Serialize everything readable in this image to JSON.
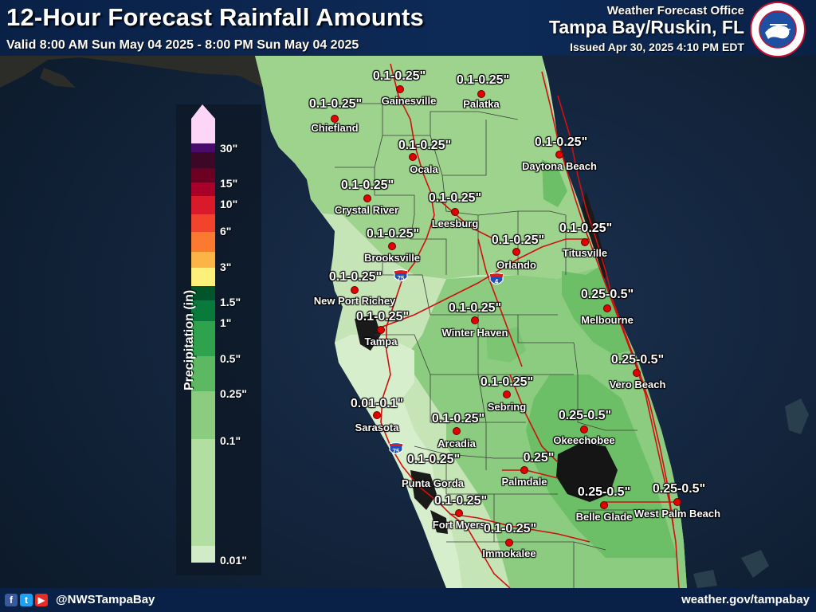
{
  "header": {
    "title": "12-Hour Forecast Rainfall Amounts",
    "valid": "Valid 8:00 AM Sun May 04 2025 - 8:00 PM Sun May 04 2025",
    "office_line": "Weather Forecast Office",
    "office_name": "Tampa Bay/Ruskin, FL",
    "issued": "Issued Apr 30, 2025 4:10 PM EDT",
    "logo_text": "NATIONAL WEATHER SERVICE"
  },
  "legend": {
    "title": "Precipitation (in)",
    "ticks": [
      "30\"",
      "15\"",
      "10\"",
      "6\"",
      "3\"",
      "1.5\"",
      "1\"",
      "0.5\"",
      "0.25\"",
      "0.1\"",
      "0.01\""
    ],
    "colors": [
      "#fdd5f7",
      "#4a0a6b",
      "#3d0728",
      "#6c0022",
      "#a80029",
      "#d91a2a",
      "#f2442c",
      "#fb7a30",
      "#fdb446",
      "#fdf07a",
      "#01552a",
      "#087a3c",
      "#2ea24d",
      "#5cb862",
      "#8ccc80",
      "#b2dea1",
      "#d1ebc8"
    ]
  },
  "cities": [
    {
      "name": "Gainesville",
      "amount": "0.1-0.25\""
    },
    {
      "name": "Palatka",
      "amount": "0.1-0.25\""
    },
    {
      "name": "Chiefland",
      "amount": "0.1-0.25\""
    },
    {
      "name": "Ocala",
      "amount": "0.1-0.25\""
    },
    {
      "name": "Daytona Beach",
      "amount": "0.1-0.25\""
    },
    {
      "name": "Crystal River",
      "amount": "0.1-0.25\""
    },
    {
      "name": "Leesburg",
      "amount": "0.1-0.25\""
    },
    {
      "name": "Brooksville",
      "amount": "0.1-0.25\""
    },
    {
      "name": "Orlando",
      "amount": "0.1-0.25\""
    },
    {
      "name": "Titusville",
      "amount": "0.1-0.25\""
    },
    {
      "name": "New Port Richey",
      "amount": "0.1-0.25\""
    },
    {
      "name": "Melbourne",
      "amount": "0.25-0.5\""
    },
    {
      "name": "Winter Haven",
      "amount": "0.1-0.25\""
    },
    {
      "name": "Tampa",
      "amount": "0.1-0.25\""
    },
    {
      "name": "Vero Beach",
      "amount": "0.25-0.5\""
    },
    {
      "name": "Sebring",
      "amount": "0.1-0.25\""
    },
    {
      "name": "Sarasota",
      "amount": "0.01-0.1\""
    },
    {
      "name": "Arcadia",
      "amount": "0.1-0.25\""
    },
    {
      "name": "Okeechobee",
      "amount": "0.25-0.5\""
    },
    {
      "name": "Punta Gorda",
      "amount": "0.1-0.25\""
    },
    {
      "name": "Palmdale",
      "amount": "0.25\""
    },
    {
      "name": "Belle Glade",
      "amount": "0.25-0.5\""
    },
    {
      "name": "West Palm Beach",
      "amount": "0.25-0.5\""
    },
    {
      "name": "Fort Myers",
      "amount": "0.1-0.25\""
    },
    {
      "name": "Immokalee",
      "amount": "0.1-0.25\""
    }
  ],
  "highways": {
    "i75": "75",
    "i4": "4"
  },
  "footer": {
    "handle": "@NWSTampaBay",
    "website": "weather.gov/tampabay"
  },
  "colors": {
    "header_bg": "#0a2147",
    "water": "#13253a",
    "land_outside": "#2f2f2a",
    "light_green": "#d1ebc8",
    "mid_green": "#a9d89a",
    "green": "#8ccc80",
    "dark_green": "#5cb862",
    "roads": "#e01010",
    "city_dot": "#e30000"
  }
}
